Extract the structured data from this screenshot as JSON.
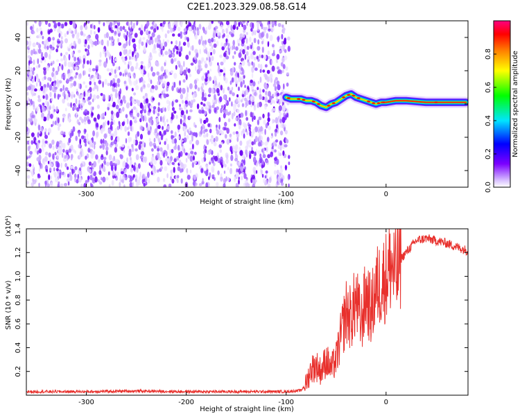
{
  "title": "C2E1.2023.329.08.58.G14",
  "chart_data": [
    {
      "type": "heatmap",
      "name": "spectrogram",
      "xlabel": "Height of straight line (km)",
      "ylabel": "Frequency (Hz)",
      "xlim": [
        -360,
        82
      ],
      "ylim": [
        -50,
        50
      ],
      "xticks": [
        -300,
        -200,
        -100,
        0
      ],
      "xtick_labels": [
        "-300",
        "-200",
        "-100",
        "0"
      ],
      "yticks": [
        -40,
        -20,
        0,
        20,
        40
      ],
      "ytick_labels": [
        "-40",
        "-20",
        "0",
        "20",
        "40"
      ],
      "noise_region_x": [
        -360,
        -97
      ],
      "signal_track": {
        "x": [
          -100,
          -95,
          -90,
          -85,
          -80,
          -75,
          -70,
          -65,
          -60,
          -55,
          -50,
          -45,
          -40,
          -35,
          -30,
          -25,
          -20,
          -15,
          -10,
          -5,
          0,
          10,
          20,
          40,
          60,
          80
        ],
        "y": [
          4,
          3,
          3,
          3,
          2,
          2,
          1,
          -1,
          -2,
          0,
          1,
          3,
          5,
          6,
          4,
          3,
          2,
          1,
          0,
          1,
          1,
          2,
          2,
          1,
          1,
          1
        ]
      },
      "colorbar": {
        "label": "Normalized spectral amplitude",
        "range": [
          0,
          1
        ],
        "ticks": [
          0.0,
          0.2,
          0.4,
          0.6,
          0.8
        ],
        "tick_labels": [
          "0.0",
          "0.2",
          "0.4",
          "0.6",
          "0.8"
        ],
        "colors": [
          "#ffffff",
          "#7c00ff",
          "#0000ff",
          "#00e5ff",
          "#00ff00",
          "#ffff00",
          "#ff8000",
          "#ff0000",
          "#ff0080"
        ]
      },
      "grid": false
    },
    {
      "type": "line",
      "name": "snr",
      "xlabel": "Height of straight line (km)",
      "ylabel": "SNR (10 * v/v)",
      "scale_label": "(x10⁴)",
      "xlim": [
        -360,
        82
      ],
      "ylim": [
        0,
        1.4
      ],
      "xticks": [
        -300,
        -200,
        -100,
        0
      ],
      "xtick_labels": [
        "-300",
        "-200",
        "-100",
        "0"
      ],
      "yticks": [
        0.2,
        0.4,
        0.6,
        0.8,
        1.0,
        1.2,
        1.4
      ],
      "ytick_labels": [
        "0.2",
        "0.4",
        "0.6",
        "0.8",
        "1.0",
        "1.2",
        "1.4"
      ],
      "color": "#e8302c",
      "series": [
        {
          "x": [
            -360,
            -300,
            -250,
            -200,
            -150,
            -100,
            -85,
            -80,
            -75,
            -70,
            -65,
            -60,
            -55,
            -50,
            -45,
            -40,
            -35,
            -30,
            -25,
            -20,
            -15,
            -10,
            -5,
            0,
            5,
            10,
            15,
            20,
            25,
            30,
            40,
            50,
            60,
            70,
            80
          ],
          "values": [
            0.03,
            0.03,
            0.035,
            0.03,
            0.03,
            0.03,
            0.04,
            0.1,
            0.22,
            0.25,
            0.2,
            0.3,
            0.22,
            0.3,
            0.5,
            0.7,
            0.65,
            0.8,
            0.6,
            0.85,
            0.7,
            0.9,
            0.95,
            1.0,
            1.1,
            1.0,
            1.15,
            1.2,
            1.25,
            1.3,
            1.32,
            1.3,
            1.28,
            1.25,
            1.22
          ]
        }
      ],
      "grid": false
    }
  ]
}
